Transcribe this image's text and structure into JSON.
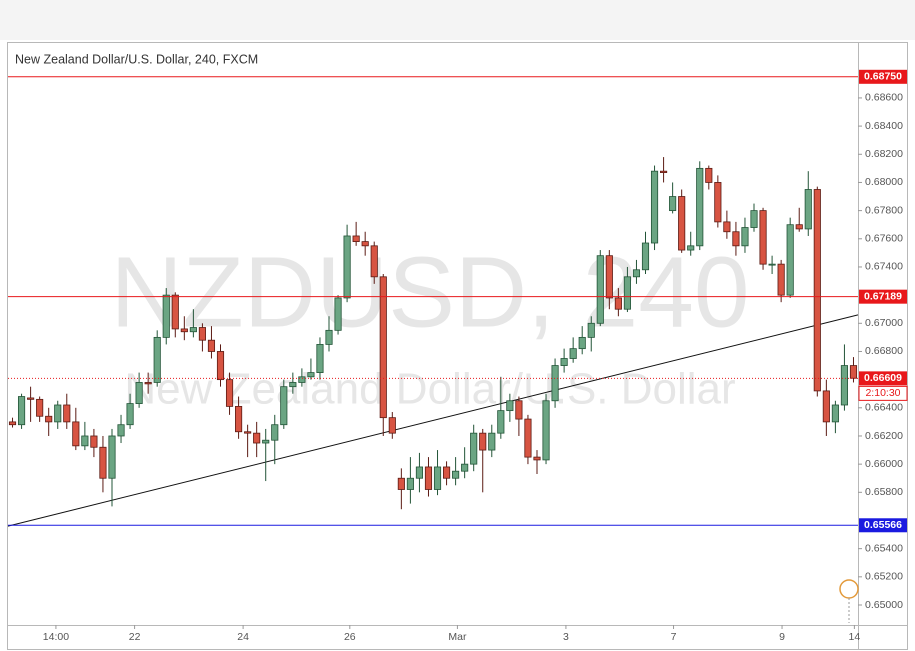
{
  "chart_data": {
    "type": "candlestick",
    "title": "New Zealand Dollar/U.S. Dollar, 240, FXCM",
    "watermark": [
      "NZDUSD, 240",
      "New Zealand Dollar/U.S. Dollar"
    ],
    "countdown": "2:10:30",
    "up_color": "#6ba583",
    "down_color": "#d75442",
    "open": [
      0.663,
      0.6628,
      0.6647,
      0.6646,
      0.6634,
      0.663,
      0.6642,
      0.663,
      0.6613,
      0.662,
      0.6612,
      0.659,
      0.662,
      0.6628,
      0.6643,
      0.6658,
      0.6658,
      0.669,
      0.672,
      0.6696,
      0.6694,
      0.6697,
      0.6688,
      0.668,
      0.666,
      0.6641,
      0.6623,
      0.6622,
      0.6615,
      0.6617,
      0.6628,
      0.6655,
      0.6658,
      0.6662,
      0.6665,
      0.6685,
      0.6695,
      0.6718,
      0.6762,
      0.6758,
      0.6755,
      0.6733,
      0.6633,
      0.659,
      0.6582,
      0.659,
      0.6598,
      0.6582,
      0.6598,
      0.659,
      0.6595,
      0.66,
      0.6622,
      0.661,
      0.6622,
      0.6638,
      0.6645,
      0.6632,
      0.6605,
      0.6603,
      0.6645,
      0.667,
      0.6675,
      0.6682,
      0.669,
      0.67,
      0.6748,
      0.6718,
      0.671,
      0.6733,
      0.6738,
      0.6757,
      0.6808,
      0.678,
      0.679,
      0.6752,
      0.6755,
      0.681,
      0.68,
      0.6772,
      0.6765,
      0.6755,
      0.6768,
      0.678,
      0.6742,
      0.6742,
      0.672,
      0.677,
      0.6767,
      0.6795,
      0.6652,
      0.663,
      0.6642,
      0.667
    ],
    "high": [
      0.6633,
      0.665,
      0.6655,
      0.6648,
      0.664,
      0.6645,
      0.665,
      0.664,
      0.663,
      0.6625,
      0.662,
      0.6625,
      0.6635,
      0.665,
      0.6665,
      0.6665,
      0.6695,
      0.6725,
      0.6722,
      0.6705,
      0.671,
      0.67,
      0.6698,
      0.6685,
      0.6665,
      0.6648,
      0.6628,
      0.663,
      0.6625,
      0.6635,
      0.666,
      0.6665,
      0.6668,
      0.6675,
      0.669,
      0.6705,
      0.672,
      0.677,
      0.6772,
      0.6765,
      0.6758,
      0.6735,
      0.6637,
      0.6597,
      0.6605,
      0.6608,
      0.6605,
      0.661,
      0.6602,
      0.6605,
      0.6612,
      0.6628,
      0.6625,
      0.6628,
      0.6662,
      0.665,
      0.6648,
      0.6635,
      0.661,
      0.665,
      0.6675,
      0.6682,
      0.669,
      0.6698,
      0.6705,
      0.6752,
      0.6752,
      0.6725,
      0.674,
      0.6745,
      0.6765,
      0.6812,
      0.6818,
      0.68,
      0.6795,
      0.6765,
      0.6815,
      0.6812,
      0.6805,
      0.678,
      0.6772,
      0.6775,
      0.6785,
      0.6782,
      0.6748,
      0.6745,
      0.6775,
      0.6782,
      0.6808,
      0.6797,
      0.666,
      0.6645,
      0.6685,
      0.6676
    ],
    "low": [
      0.6626,
      0.6625,
      0.663,
      0.663,
      0.662,
      0.6625,
      0.6625,
      0.661,
      0.661,
      0.6605,
      0.658,
      0.657,
      0.6615,
      0.6625,
      0.664,
      0.665,
      0.6655,
      0.6685,
      0.669,
      0.6688,
      0.669,
      0.668,
      0.6675,
      0.6655,
      0.6635,
      0.6618,
      0.6605,
      0.6605,
      0.6588,
      0.66,
      0.6625,
      0.665,
      0.6655,
      0.666,
      0.666,
      0.668,
      0.6692,
      0.6715,
      0.6755,
      0.6748,
      0.6728,
      0.662,
      0.6618,
      0.6568,
      0.6572,
      0.658,
      0.6577,
      0.6578,
      0.6585,
      0.6585,
      0.659,
      0.6595,
      0.658,
      0.6605,
      0.6618,
      0.663,
      0.662,
      0.66,
      0.6593,
      0.66,
      0.664,
      0.6665,
      0.6672,
      0.6678,
      0.668,
      0.6698,
      0.671,
      0.6705,
      0.6708,
      0.6728,
      0.6735,
      0.6752,
      0.68,
      0.6778,
      0.675,
      0.6748,
      0.6752,
      0.6795,
      0.6768,
      0.676,
      0.6748,
      0.675,
      0.6765,
      0.6738,
      0.6735,
      0.6715,
      0.6718,
      0.6765,
      0.6762,
      0.6648,
      0.662,
      0.6622,
      0.6638,
      0.6658
    ],
    "close": [
      0.6628,
      0.6648,
      0.6646,
      0.6634,
      0.663,
      0.6642,
      0.663,
      0.6613,
      0.662,
      0.6612,
      0.659,
      0.662,
      0.6628,
      0.6643,
      0.6658,
      0.6657,
      0.669,
      0.672,
      0.6696,
      0.6694,
      0.6697,
      0.6688,
      0.668,
      0.666,
      0.6641,
      0.6623,
      0.6622,
      0.6615,
      0.6617,
      0.6628,
      0.6655,
      0.6658,
      0.6662,
      0.6665,
      0.6685,
      0.6695,
      0.6718,
      0.6762,
      0.6758,
      0.6755,
      0.6733,
      0.6633,
      0.6622,
      0.6582,
      0.659,
      0.6598,
      0.6582,
      0.6598,
      0.659,
      0.6595,
      0.66,
      0.6622,
      0.661,
      0.6622,
      0.6638,
      0.6645,
      0.6632,
      0.6605,
      0.6603,
      0.6645,
      0.667,
      0.6675,
      0.6682,
      0.669,
      0.67,
      0.6748,
      0.6718,
      0.671,
      0.6733,
      0.6738,
      0.6757,
      0.6808,
      0.6807,
      0.679,
      0.6752,
      0.6755,
      0.681,
      0.68,
      0.6772,
      0.6765,
      0.6755,
      0.6768,
      0.678,
      0.6742,
      0.6742,
      0.672,
      0.677,
      0.6767,
      0.6795,
      0.6652,
      0.663,
      0.6642,
      0.667,
      0.6661
    ],
    "xlim": [
      -0.5,
      93.5
    ],
    "xticks": [
      {
        "value": 4.8,
        "label": "14:00"
      },
      {
        "value": 13.5,
        "label": "22"
      },
      {
        "value": 25.5,
        "label": "24"
      },
      {
        "value": 37.3,
        "label": "26"
      },
      {
        "value": 49.2,
        "label": "Mar"
      },
      {
        "value": 61.2,
        "label": "3"
      },
      {
        "value": 73.1,
        "label": "7"
      },
      {
        "value": 85.1,
        "label": "9"
      },
      {
        "value": 93.1,
        "label": "14"
      }
    ],
    "ylim": [
      0.64858,
      0.6899
    ],
    "yticks": [
      {
        "value": 0.65,
        "label": "0.65000"
      },
      {
        "value": 0.652,
        "label": "0.65200"
      },
      {
        "value": 0.654,
        "label": "0.65400"
      },
      {
        "value": 0.658,
        "label": "0.65800"
      },
      {
        "value": 0.66,
        "label": "0.66000"
      },
      {
        "value": 0.662,
        "label": "0.66200"
      },
      {
        "value": 0.664,
        "label": "0.66400"
      },
      {
        "value": 0.668,
        "label": "0.66800"
      },
      {
        "value": 0.67,
        "label": "0.67000"
      },
      {
        "value": 0.674,
        "label": "0.67400"
      },
      {
        "value": 0.676,
        "label": "0.67600"
      },
      {
        "value": 0.678,
        "label": "0.67800"
      },
      {
        "value": 0.68,
        "label": "0.68000"
      },
      {
        "value": 0.682,
        "label": "0.68200"
      },
      {
        "value": 0.684,
        "label": "0.68400"
      },
      {
        "value": 0.686,
        "label": "0.68600"
      }
    ],
    "levels": [
      {
        "value": 0.6875,
        "label": "0.68750",
        "color": "#e8181b"
      },
      {
        "value": 0.67189,
        "label": "0.67189",
        "color": "#e8181b"
      },
      {
        "value": 0.65566,
        "label": "0.65566",
        "color": "#1a1ae0"
      },
      {
        "value": 0.66609,
        "label": "0.66609",
        "color": "#e8181b"
      }
    ],
    "trendline": {
      "x": [
        -0.5,
        93.5
      ],
      "y": [
        0.6556,
        0.6706
      ]
    }
  }
}
